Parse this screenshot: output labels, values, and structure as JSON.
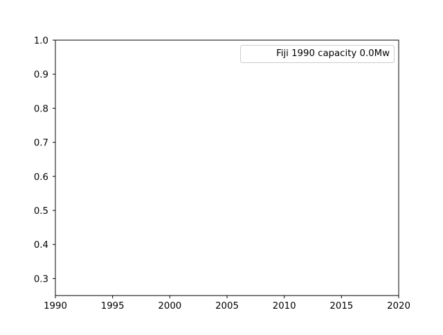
{
  "chart_data": {
    "type": "line",
    "title": "",
    "xlabel": "",
    "ylabel": "",
    "xlim": [
      1990,
      2020
    ],
    "ylim": [
      0.25,
      1.0
    ],
    "x_ticks": [
      1990,
      1995,
      2000,
      2005,
      2010,
      2015,
      2020
    ],
    "x_tick_labels": [
      "1990",
      "1995",
      "2000",
      "2005",
      "2010",
      "2015",
      "2020"
    ],
    "y_ticks": [
      0.3,
      0.4,
      0.5,
      0.6,
      0.7,
      0.8,
      0.9,
      1.0
    ],
    "y_tick_labels": [
      "0.3",
      "0.4",
      "0.5",
      "0.6",
      "0.7",
      "0.8",
      "0.9",
      "1.0"
    ],
    "grid": false,
    "legend": {
      "placement": "upper right",
      "entries": [
        "Fiji 1990 capacity 0.0Mw"
      ]
    },
    "series": [
      {
        "name": "Fiji 1990 capacity 0.0Mw",
        "x": [],
        "y": []
      }
    ]
  }
}
